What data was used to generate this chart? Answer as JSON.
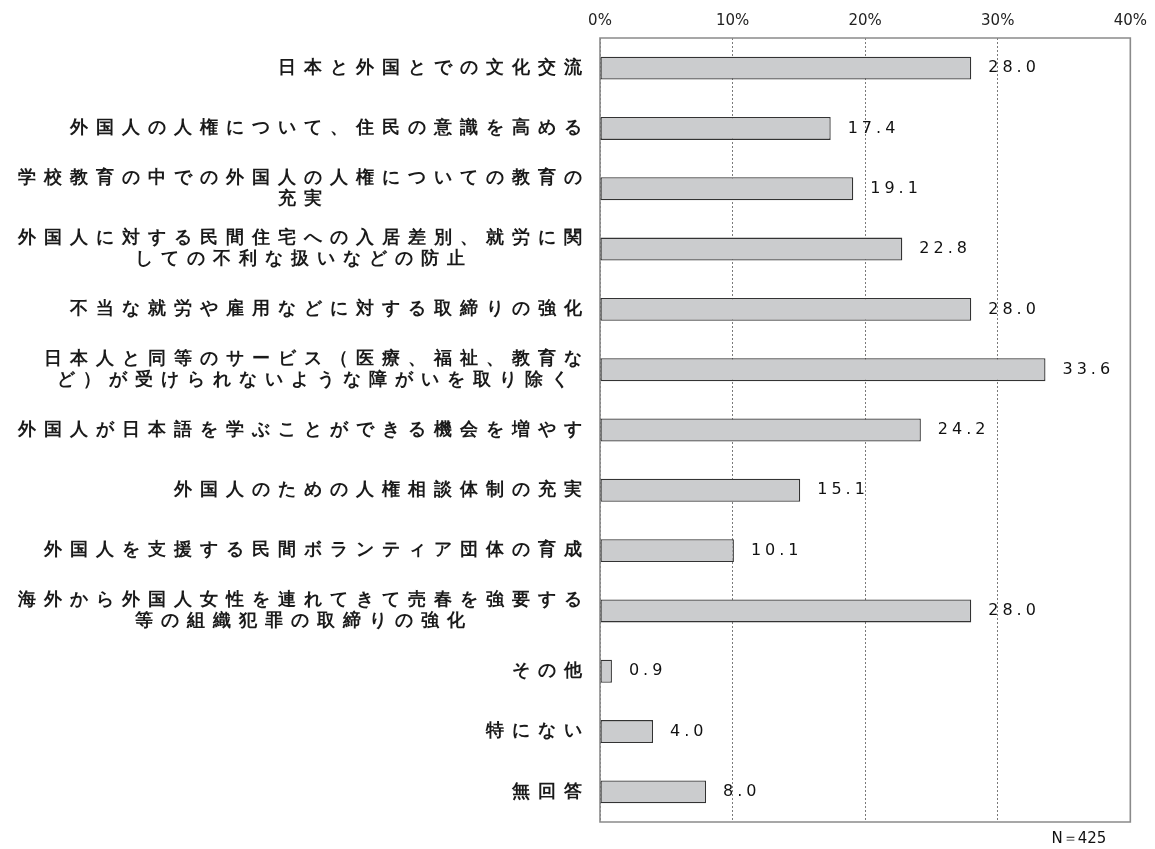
{
  "chart_data": {
    "type": "bar",
    "orientation": "horizontal",
    "categories": [
      "日本と外国とでの文化交流",
      "外国人の人権について、住民の意識を高める",
      "学校教育の中での外国人の人権についての教育の充実",
      "外国人に対する民間住宅への入居差別、就労に関しての不利な扱いなどの防止",
      "不当な就労や雇用などに対する取締りの強化",
      "日本人と同等のサービス（医療、福祉、教育など）が受けられないような障がいを取り除く",
      "外国人が日本語を学ぶことができる機会を増やす",
      "外国人のための人権相談体制の充実",
      "外国人を支援する民間ボランティア団体の育成",
      "海外から外国人女性を連れてきて売春を強要する等の組織犯罪の取締りの強化",
      "その他",
      "特にない",
      "無回答"
    ],
    "values": [
      28.0,
      17.4,
      19.1,
      22.8,
      28.0,
      33.6,
      24.2,
      15.1,
      10.1,
      28.0,
      0.9,
      4.0,
      8.0
    ],
    "color": "#cbccce",
    "value_labels": [
      "28.0",
      "17.4",
      "19.1",
      "22.8",
      "28.0",
      "33.6",
      "24.2",
      "15.1",
      "10.1",
      "28.0",
      "0.9",
      "4.0",
      "8.0"
    ],
    "xlim": [
      0,
      40
    ],
    "xticks": [
      {
        "value": 0,
        "label": "0%"
      },
      {
        "value": 10,
        "label": "10%"
      },
      {
        "value": 20,
        "label": "20%"
      },
      {
        "value": 30,
        "label": "30%"
      },
      {
        "value": 40,
        "label": "40%"
      }
    ],
    "grid": "x",
    "annotations": [
      "N＝425"
    ]
  }
}
